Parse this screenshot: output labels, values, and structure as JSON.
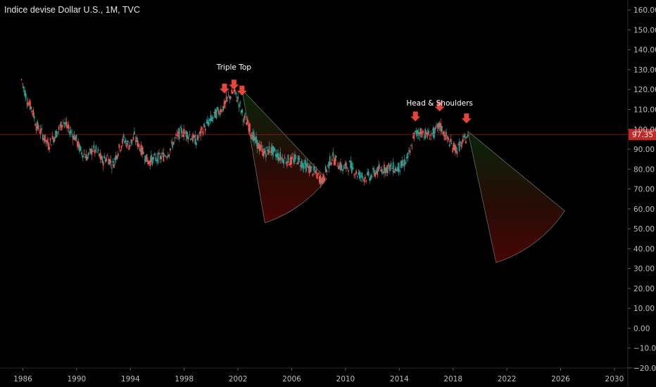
{
  "header": {
    "title": "Indice devise Dollar U.S., 1M, TVC"
  },
  "colors": {
    "background": "#000000",
    "up": "#26a69a",
    "down": "#ef5350",
    "arrow": "#e5453a",
    "price_line": "#b71c1c",
    "price_badge": "#c62828",
    "axis": "#2a2a2a",
    "cone_edge": "#8a9a8a"
  },
  "chart_data": {
    "type": "candlestick",
    "ylim": [
      -20,
      165
    ],
    "xlim": [
      1984.3,
      2031.0
    ],
    "y_ticks": [
      -20,
      -10,
      0,
      10,
      20,
      30,
      40,
      50,
      60,
      70,
      80,
      90,
      100,
      110,
      120,
      130,
      140,
      150,
      160
    ],
    "y_tick_labels": [
      "−20.00",
      "−10.00",
      "0.00",
      "10.00",
      "20.00",
      "30.00",
      "40.00",
      "50.00",
      "60.00",
      "70.00",
      "80.00",
      "90.00",
      "100.00",
      "110.00",
      "120.00",
      "130.00",
      "140.00",
      "150.00",
      "160.00"
    ],
    "x_ticks": [
      1986,
      1990,
      1994,
      1998,
      2002,
      2006,
      2010,
      2014,
      2018,
      2022,
      2026,
      2030
    ],
    "x_tick_labels": [
      "1986",
      "1990",
      "1994",
      "1998",
      "2002",
      "2006",
      "2010",
      "2014",
      "2018",
      "2022",
      "2026",
      "2030"
    ],
    "current_price": 97.35,
    "current_price_label": "97.35",
    "series": [
      {
        "x": [
          1985.9,
          1986.3,
          1986.7,
          1987.0,
          1987.4,
          1987.9,
          1988.2,
          1988.6,
          1989.0,
          1989.4,
          1989.9,
          1990.3,
          1990.8,
          1991.2,
          1991.6,
          1991.9,
          1992.3,
          1992.7,
          1993.0,
          1993.5,
          1993.9,
          1994.3,
          1994.8,
          1995.3,
          1995.8,
          1996.3,
          1996.8,
          1997.3,
          1997.8,
          1998.4,
          1998.9,
          1999.4,
          1999.9,
          2000.4,
          2000.9,
          2001.3,
          2001.7,
          2002.0,
          2002.4,
          2002.8,
          2003.2,
          2003.6,
          2004.0,
          2004.4,
          2004.9,
          2005.4,
          2005.9,
          2006.4,
          2006.9,
          2007.4,
          2007.9,
          2008.3,
          2008.6,
          2009.0,
          2009.3,
          2009.8,
          2010.3,
          2010.8,
          2011.3,
          2011.8,
          2012.3,
          2012.8,
          2013.3,
          2013.8,
          2014.3,
          2014.8,
          2015.1,
          2015.6,
          2016.1,
          2016.6,
          2017.0,
          2017.5,
          2017.9,
          2018.3,
          2018.8,
          2019.1
        ],
        "y": [
          125,
          115,
          110,
          102,
          98,
          92,
          95,
          99,
          104,
          100,
          96,
          89,
          86,
          90,
          88,
          84,
          86,
          82,
          88,
          95,
          92,
          96,
          90,
          84,
          85,
          86,
          88,
          95,
          99,
          97,
          94,
          100,
          104,
          108,
          111,
          116,
          119,
          115,
          106,
          102,
          95,
          91,
          88,
          90,
          87,
          85,
          84,
          85,
          82,
          80,
          77,
          74,
          80,
          86,
          84,
          80,
          82,
          78,
          76,
          76,
          79,
          80,
          81,
          80,
          82,
          88,
          97,
          99,
          97,
          98,
          102,
          96,
          92,
          90,
          94,
          97.35
        ]
      }
    ],
    "annotations": [
      {
        "text": "Triple Top",
        "x": 2001.7,
        "y": 130
      },
      {
        "text": "Head  & Shoulders",
        "x": 2017.0,
        "y": 112
      }
    ],
    "arrows": [
      {
        "x": 2001.0,
        "y": 118
      },
      {
        "x": 2001.7,
        "y": 120
      },
      {
        "x": 2002.3,
        "y": 117
      },
      {
        "x": 2015.2,
        "y": 104
      },
      {
        "x": 2017.0,
        "y": 109
      },
      {
        "x": 2019.0,
        "y": 103
      }
    ],
    "cones": [
      {
        "apex": [
          2002.3,
          120
        ],
        "p1": [
          2004.0,
          53
        ],
        "p2": [
          2008.6,
          75
        ]
      },
      {
        "apex": [
          2019.1,
          99
        ],
        "p1": [
          2021.2,
          33
        ],
        "p2": [
          2026.3,
          59
        ]
      }
    ]
  }
}
